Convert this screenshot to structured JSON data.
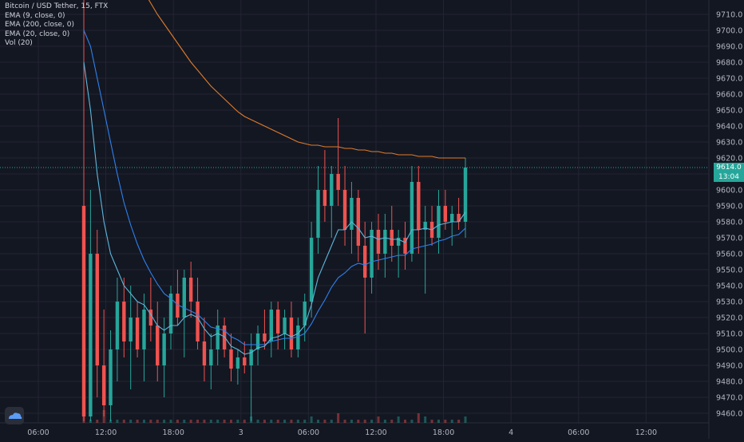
{
  "chart_data": {
    "type": "candlestick",
    "legend": [
      "Bitcoin / USD Tether, 15, FTX",
      "EMA (9, close, 0)",
      "EMA (200, close, 0)",
      "EMA (20, close, 0)",
      "Vol (20)"
    ],
    "colors": {
      "background": "#131722",
      "grid": "#232632",
      "up": "#26a69a",
      "down": "#ef5350",
      "ema9": "#5db7dc",
      "ema20": "#2f80ed",
      "ema200": "#e07b2a"
    },
    "y_ticks": [
      9710,
      9700,
      9690,
      9680,
      9670,
      9660,
      9650,
      9640,
      9630,
      9620,
      9610,
      9600,
      9590,
      9580,
      9570,
      9560,
      9550,
      9540,
      9530,
      9520,
      9510,
      9500,
      9490,
      9480,
      9470,
      9460
    ],
    "x_ticks": [
      {
        "hours": 0,
        "label": "06:00"
      },
      {
        "hours": 6,
        "label": "12:00"
      },
      {
        "hours": 12,
        "label": "18:00"
      },
      {
        "hours": 18,
        "label": "3"
      },
      {
        "hours": 24,
        "label": "06:00"
      },
      {
        "hours": 30,
        "label": "12:00"
      },
      {
        "hours": 36,
        "label": "18:00"
      },
      {
        "hours": 42,
        "label": "4"
      },
      {
        "hours": 48,
        "label": "06:00"
      },
      {
        "hours": 54,
        "label": "12:00"
      }
    ],
    "ylim": [
      9454,
      9715
    ],
    "last_price": "9614.0",
    "countdown": "13:04",
    "candles": [
      {
        "o": 9590,
        "h": 9720,
        "l": 9455,
        "c": 9458
      },
      {
        "o": 9458,
        "h": 9600,
        "l": 9455,
        "c": 9560
      },
      {
        "o": 9560,
        "h": 9575,
        "l": 9470,
        "c": 9490
      },
      {
        "o": 9490,
        "h": 9525,
        "l": 9458,
        "c": 9465
      },
      {
        "o": 9465,
        "h": 9512,
        "l": 9455,
        "c": 9500
      },
      {
        "o": 9500,
        "h": 9545,
        "l": 9480,
        "c": 9530
      },
      {
        "o": 9530,
        "h": 9545,
        "l": 9495,
        "c": 9505
      },
      {
        "o": 9505,
        "h": 9540,
        "l": 9475,
        "c": 9520
      },
      {
        "o": 9520,
        "h": 9530,
        "l": 9495,
        "c": 9500
      },
      {
        "o": 9500,
        "h": 9535,
        "l": 9480,
        "c": 9525
      },
      {
        "o": 9525,
        "h": 9545,
        "l": 9505,
        "c": 9515
      },
      {
        "o": 9515,
        "h": 9530,
        "l": 9480,
        "c": 9490
      },
      {
        "o": 9490,
        "h": 9520,
        "l": 9470,
        "c": 9510
      },
      {
        "o": 9510,
        "h": 9540,
        "l": 9500,
        "c": 9535
      },
      {
        "o": 9535,
        "h": 9550,
        "l": 9515,
        "c": 9520
      },
      {
        "o": 9520,
        "h": 9550,
        "l": 9495,
        "c": 9545
      },
      {
        "o": 9545,
        "h": 9555,
        "l": 9520,
        "c": 9530
      },
      {
        "o": 9530,
        "h": 9545,
        "l": 9500,
        "c": 9505
      },
      {
        "o": 9505,
        "h": 9520,
        "l": 9480,
        "c": 9490
      },
      {
        "o": 9490,
        "h": 9510,
        "l": 9475,
        "c": 9500
      },
      {
        "o": 9500,
        "h": 9525,
        "l": 9490,
        "c": 9515
      },
      {
        "o": 9515,
        "h": 9520,
        "l": 9495,
        "c": 9500
      },
      {
        "o": 9500,
        "h": 9510,
        "l": 9480,
        "c": 9488
      },
      {
        "o": 9488,
        "h": 9500,
        "l": 9478,
        "c": 9495
      },
      {
        "o": 9495,
        "h": 9505,
        "l": 9485,
        "c": 9490
      },
      {
        "o": 9490,
        "h": 9510,
        "l": 9455,
        "c": 9500
      },
      {
        "o": 9500,
        "h": 9515,
        "l": 9490,
        "c": 9510
      },
      {
        "o": 9510,
        "h": 9525,
        "l": 9500,
        "c": 9505
      },
      {
        "o": 9505,
        "h": 9530,
        "l": 9495,
        "c": 9525
      },
      {
        "o": 9525,
        "h": 9530,
        "l": 9500,
        "c": 9510
      },
      {
        "o": 9510,
        "h": 9525,
        "l": 9500,
        "c": 9520
      },
      {
        "o": 9520,
        "h": 9530,
        "l": 9495,
        "c": 9500
      },
      {
        "o": 9500,
        "h": 9520,
        "l": 9495,
        "c": 9515
      },
      {
        "o": 9515,
        "h": 9535,
        "l": 9505,
        "c": 9530
      },
      {
        "o": 9530,
        "h": 9580,
        "l": 9520,
        "c": 9570
      },
      {
        "o": 9570,
        "h": 9615,
        "l": 9560,
        "c": 9600
      },
      {
        "o": 9600,
        "h": 9625,
        "l": 9580,
        "c": 9590
      },
      {
        "o": 9590,
        "h": 9615,
        "l": 9570,
        "c": 9610
      },
      {
        "o": 9610,
        "h": 9645,
        "l": 9590,
        "c": 9600
      },
      {
        "o": 9600,
        "h": 9615,
        "l": 9565,
        "c": 9575
      },
      {
        "o": 9575,
        "h": 9605,
        "l": 9560,
        "c": 9595
      },
      {
        "o": 9595,
        "h": 9600,
        "l": 9555,
        "c": 9565
      },
      {
        "o": 9565,
        "h": 9580,
        "l": 9510,
        "c": 9545
      },
      {
        "o": 9545,
        "h": 9580,
        "l": 9535,
        "c": 9575
      },
      {
        "o": 9575,
        "h": 9585,
        "l": 9550,
        "c": 9560
      },
      {
        "o": 9560,
        "h": 9585,
        "l": 9545,
        "c": 9575
      },
      {
        "o": 9575,
        "h": 9590,
        "l": 9555,
        "c": 9565
      },
      {
        "o": 9565,
        "h": 9575,
        "l": 9545,
        "c": 9570
      },
      {
        "o": 9570,
        "h": 9580,
        "l": 9550,
        "c": 9560
      },
      {
        "o": 9560,
        "h": 9615,
        "l": 9555,
        "c": 9605
      },
      {
        "o": 9605,
        "h": 9615,
        "l": 9560,
        "c": 9575
      },
      {
        "o": 9575,
        "h": 9590,
        "l": 9535,
        "c": 9580
      },
      {
        "o": 9580,
        "h": 9590,
        "l": 9565,
        "c": 9570
      },
      {
        "o": 9570,
        "h": 9600,
        "l": 9560,
        "c": 9590
      },
      {
        "o": 9590,
        "h": 9600,
        "l": 9575,
        "c": 9580
      },
      {
        "o": 9580,
        "h": 9590,
        "l": 9565,
        "c": 9585
      },
      {
        "o": 9585,
        "h": 9595,
        "l": 9575,
        "c": 9580
      },
      {
        "o": 9580,
        "h": 9620,
        "l": 9570,
        "c": 9614
      }
    ],
    "ema9": [
      9680,
      9650,
      9610,
      9580,
      9560,
      9550,
      9540,
      9535,
      9530,
      9528,
      9522,
      9515,
      9512,
      9515,
      9515,
      9520,
      9522,
      9520,
      9513,
      9508,
      9510,
      9508,
      9502,
      9500,
      9497,
      9498,
      9501,
      9502,
      9507,
      9508,
      9510,
      9508,
      9510,
      9515,
      9528,
      9545,
      9555,
      9565,
      9575,
      9575,
      9580,
      9576,
      9570,
      9571,
      9569,
      9570,
      9569,
      9569,
      9567,
      9575,
      9575,
      9576,
      9575,
      9578,
      9579,
      9580,
      9580,
      9586
    ],
    "ema20": [
      9700,
      9690,
      9670,
      9650,
      9630,
      9610,
      9592,
      9578,
      9566,
      9556,
      9548,
      9541,
      9535,
      9532,
      9528,
      9526,
      9524,
      9522,
      9518,
      9514,
      9513,
      9512,
      9508,
      9506,
      9503,
      9503,
      9503,
      9503,
      9505,
      9506,
      9507,
      9507,
      9508,
      9510,
      9516,
      9524,
      9531,
      9539,
      9545,
      9548,
      9552,
      9554,
      9553,
      9555,
      9556,
      9557,
      9558,
      9559,
      9559,
      9563,
      9564,
      9565,
      9566,
      9568,
      9569,
      9571,
      9572,
      9576
    ],
    "ema200": [
      9790,
      9782,
      9775,
      9767,
      9760,
      9752,
      9745,
      9738,
      9731,
      9724,
      9717,
      9710,
      9704,
      9698,
      9692,
      9686,
      9680,
      9675,
      9670,
      9665,
      9661,
      9657,
      9653,
      9649,
      9646,
      9644,
      9642,
      9640,
      9638,
      9636,
      9634,
      9632,
      9630,
      9629,
      9628,
      9628,
      9627,
      9627,
      9627,
      9626,
      9626,
      9625,
      9625,
      9624,
      9624,
      9623,
      9623,
      9622,
      9622,
      9622,
      9621,
      9621,
      9621,
      9620,
      9620,
      9620,
      9620,
      9620
    ],
    "volume": [
      3,
      1,
      1,
      4,
      1,
      1,
      1,
      1,
      1,
      1,
      1,
      1,
      1,
      1,
      1,
      1,
      1,
      1,
      1,
      1,
      1,
      1,
      1,
      1,
      1,
      2,
      1,
      1,
      1,
      1,
      1,
      1,
      1,
      1,
      2,
      1,
      1,
      1,
      3,
      1,
      1,
      1,
      1,
      1,
      2,
      1,
      1,
      2,
      1,
      1,
      3,
      2,
      1,
      1,
      1,
      1,
      1,
      2
    ]
  }
}
